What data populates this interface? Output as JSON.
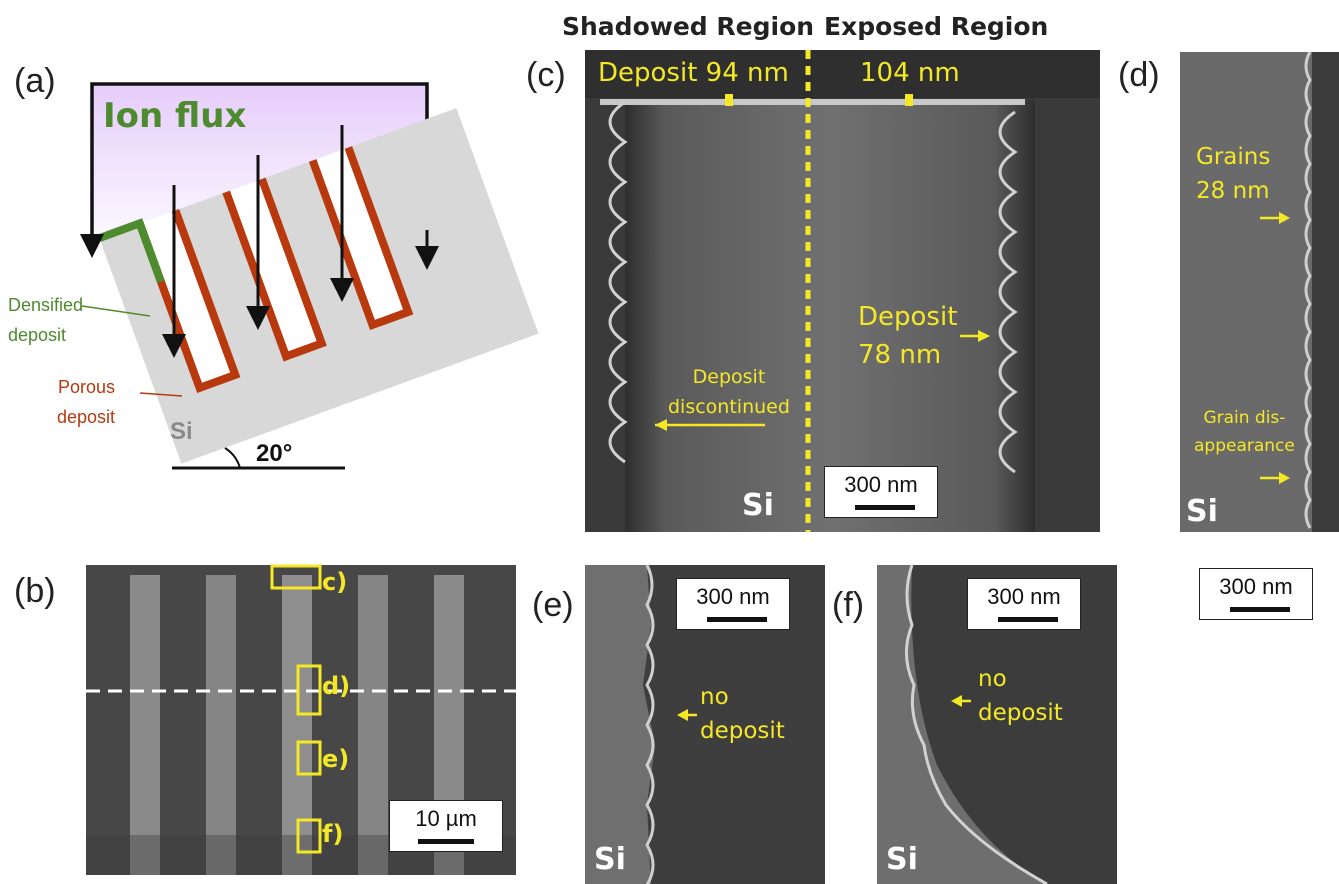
{
  "panels": {
    "a": {
      "label": "(a)",
      "ion_flux": "Ion flux",
      "densified": [
        "Densified",
        "deposit"
      ],
      "porous": [
        "Porous",
        "deposit"
      ],
      "si": "Si",
      "angle": "20°"
    },
    "b": {
      "label": "(b)",
      "box_labels": [
        "c)",
        "d)",
        "e)",
        "f)"
      ],
      "scale": "10 µm"
    },
    "c": {
      "label": "(c)",
      "header_left": "Shadowed Region",
      "header_right": "Exposed Region",
      "deposit_94": "Deposit 94 nm",
      "deposit_104": "104 nm",
      "deposit_78": [
        "Deposit",
        "78 nm"
      ],
      "discontinued": [
        "Deposit",
        "discontinued"
      ],
      "si": "Si",
      "scale": "300 nm"
    },
    "d": {
      "label": "(d)",
      "grains": [
        "Grains",
        "28 nm"
      ],
      "disappear": [
        "Grain dis-",
        "appearance"
      ],
      "si": "Si",
      "scale": "300 nm"
    },
    "e": {
      "label": "(e)",
      "note": [
        "no",
        "deposit"
      ],
      "si": "Si",
      "scale": "300 nm"
    },
    "f": {
      "label": "(f)",
      "note": [
        "no",
        "deposit"
      ],
      "si": "Si",
      "scale": "300 nm"
    }
  },
  "colors": {
    "annotation": "#f4e826",
    "densified": "#4e8a2e",
    "porous": "#b8390e",
    "ion_flux_fill": "#ecd9fb"
  }
}
